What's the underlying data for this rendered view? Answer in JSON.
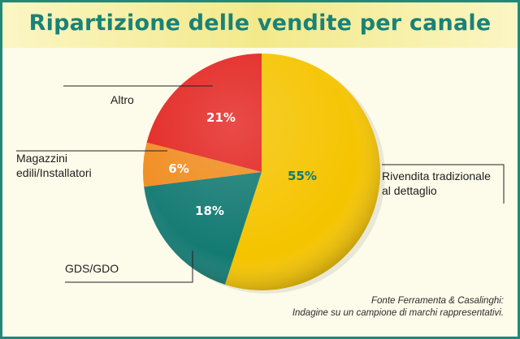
{
  "chart_data": {
    "type": "pie",
    "title": "Ripartizione delle vendite per canale",
    "slices": [
      {
        "label": "Rivendita tradizionale al dettaglio",
        "label_lines": [
          "Rivendita tradizionale",
          "al dettaglio"
        ],
        "value": 55,
        "value_label": "55%",
        "color": "#f5c400",
        "value_color": "#0f7a6a"
      },
      {
        "label": "GDS/GDO",
        "label_lines": [
          "GDS/GDO"
        ],
        "value": 18,
        "value_label": "18%",
        "color": "#137a72",
        "value_color": "#ffffff"
      },
      {
        "label": "Magazzini edili/Installatori",
        "label_lines": [
          "Magazzini",
          "edili/Installatori"
        ],
        "value": 6,
        "value_label": "6%",
        "color": "#f08c1e",
        "value_color": "#ffffff"
      },
      {
        "label": "Altro",
        "label_lines": [
          "Altro"
        ],
        "value": 21,
        "value_label": "21%",
        "color": "#e32420",
        "value_color": "#ffffff"
      }
    ]
  },
  "source": {
    "line1": "Fonte Ferramenta & Casalinghi:",
    "line2": "Indagine su un campione di marchi rappresentativi."
  },
  "colors": {
    "frame": "#1f8a7a",
    "title": "#1a8276",
    "background": "#fdfbea"
  }
}
